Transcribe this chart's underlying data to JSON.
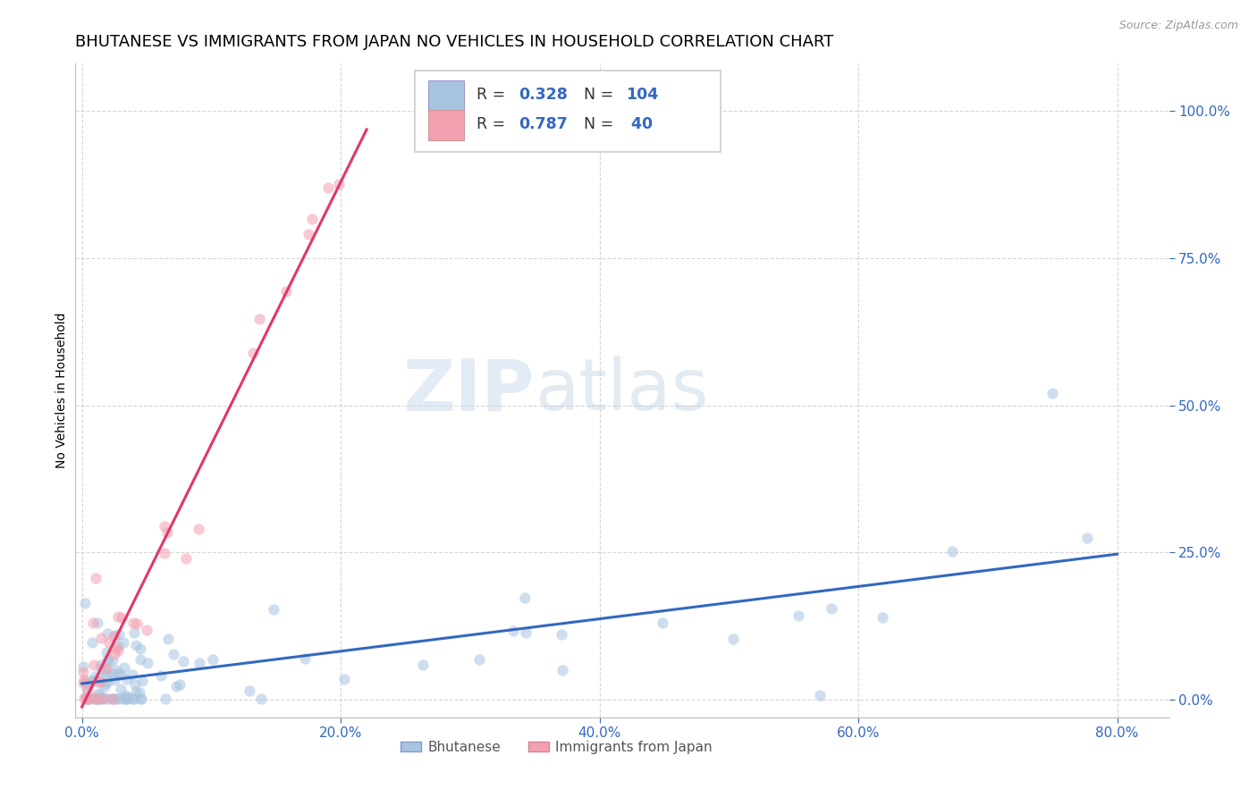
{
  "title": "BHUTANESE VS IMMIGRANTS FROM JAPAN NO VEHICLES IN HOUSEHOLD CORRELATION CHART",
  "source": "Source: ZipAtlas.com",
  "xlabel_ticks": [
    "0.0%",
    "20.0%",
    "40.0%",
    "60.0%",
    "80.0%"
  ],
  "ylabel_ticks": [
    "0.0%",
    "25.0%",
    "50.0%",
    "75.0%",
    "100.0%"
  ],
  "xlabel_tick_vals": [
    0.0,
    0.2,
    0.4,
    0.6,
    0.8
  ],
  "ylabel_tick_vals": [
    0.0,
    0.25,
    0.5,
    0.75,
    1.0
  ],
  "ylabel_label": "No Vehicles in Household",
  "legend_label1": "Bhutanese",
  "legend_label2": "Immigrants from Japan",
  "R1": 0.328,
  "N1": 104,
  "R2": 0.787,
  "N2": 40,
  "color1": "#a8c4e0",
  "color2": "#f4a0b0",
  "line_color1": "#3468c0",
  "line_color2": "#e03868",
  "watermark_zip": "ZIP",
  "watermark_atlas": "atlas",
  "title_fontsize": 13,
  "axis_label_fontsize": 10,
  "tick_fontsize": 11,
  "scatter_size": 80,
  "scatter_alpha": 0.55,
  "xlim": [
    -0.005,
    0.84
  ],
  "ylim": [
    -0.03,
    1.08
  ]
}
